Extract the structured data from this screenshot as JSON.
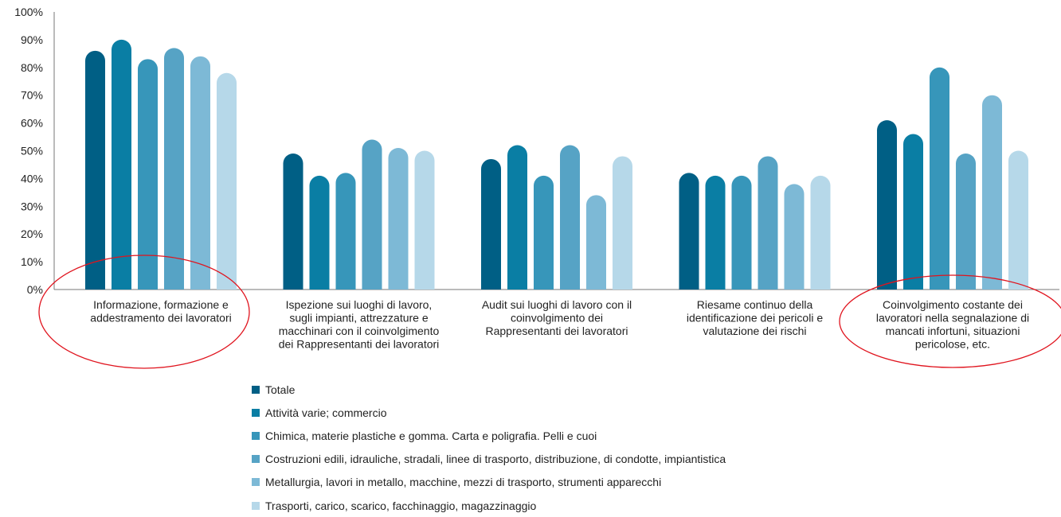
{
  "chart_data": {
    "type": "bar",
    "title": "",
    "xlabel": "",
    "ylabel": "",
    "ylim": [
      0,
      100
    ],
    "yticks": [
      "0%",
      "10%",
      "20%",
      "30%",
      "40%",
      "50%",
      "60%",
      "70%",
      "80%",
      "90%",
      "100%"
    ],
    "categories": [
      [
        "Informazione, formazione e",
        "addestramento dei lavoratori"
      ],
      [
        "Ispezione sui luoghi di lavoro,",
        "sugli impianti, attrezzature e",
        "macchinari con il coinvolgimento",
        "dei Rappresentanti dei lavoratori"
      ],
      [
        "Audit sui luoghi di lavoro con il",
        "coinvolgimento dei",
        "Rappresentanti dei lavoratori"
      ],
      [
        "Riesame continuo della",
        "identificazione dei pericoli e",
        "valutazione dei rischi"
      ],
      [
        "Coinvolgimento costante dei",
        "lavoratori nella segnalazione di",
        "mancati infortuni, situazioni",
        "pericolose, etc."
      ]
    ],
    "series": [
      {
        "name": "Totale",
        "color": "#005f85",
        "values": [
          86,
          49,
          47,
          42,
          61
        ]
      },
      {
        "name": "Attività varie; commercio",
        "color": "#0a7ea4",
        "values": [
          90,
          41,
          52,
          41,
          56
        ]
      },
      {
        "name": "Chimica, materie plastiche e gomma. Carta e poligrafia. Pelli e cuoi",
        "color": "#3796ba",
        "values": [
          83,
          42,
          41,
          41,
          80
        ]
      },
      {
        "name": "Costruzioni edili, idrauliche, stradali, linee di trasporto, distribuzione, di condotte, impiantistica",
        "color": "#56a3c5",
        "values": [
          87,
          54,
          52,
          48,
          49
        ]
      },
      {
        "name": "Metallurgia, lavori in metallo, macchine, mezzi di trasporto, strumenti apparecchi",
        "color": "#7db9d6",
        "values": [
          84,
          51,
          34,
          38,
          70
        ]
      },
      {
        "name": "Trasporti, carico, scarico, facchinaggio, magazzinaggio",
        "color": "#b6d8e9",
        "values": [
          78,
          50,
          48,
          41,
          50
        ]
      }
    ],
    "legend_position": "bottom",
    "annotations": [
      {
        "type": "ellipse",
        "color": "#e0141e",
        "category_index": 0
      },
      {
        "type": "ellipse",
        "color": "#e0141e",
        "category_index": 4
      }
    ]
  }
}
